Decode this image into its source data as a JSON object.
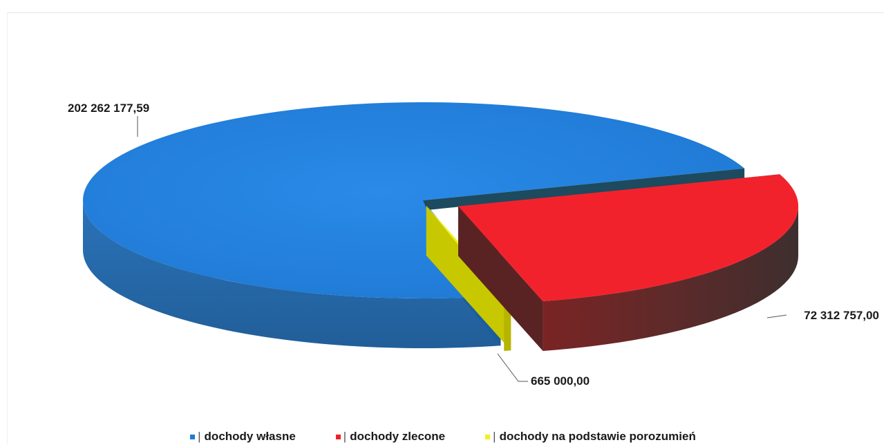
{
  "chart_data": {
    "type": "pie",
    "view": "3d-exploded",
    "slices": [
      {
        "label": "dochody własne",
        "value": 202262177.59,
        "value_label": "202 262 177,59",
        "color": "#1f7ad6"
      },
      {
        "label": "dochody zlecone",
        "value": 72312757.0,
        "value_label": "72 312 757,00",
        "color": "#f2202a"
      },
      {
        "label": "dochody na podstawie porozumień",
        "value": 665000.0,
        "value_label": "665 000,00",
        "color": "#f0f020"
      }
    ],
    "legend_position": "bottom",
    "legend_marker": "|"
  }
}
